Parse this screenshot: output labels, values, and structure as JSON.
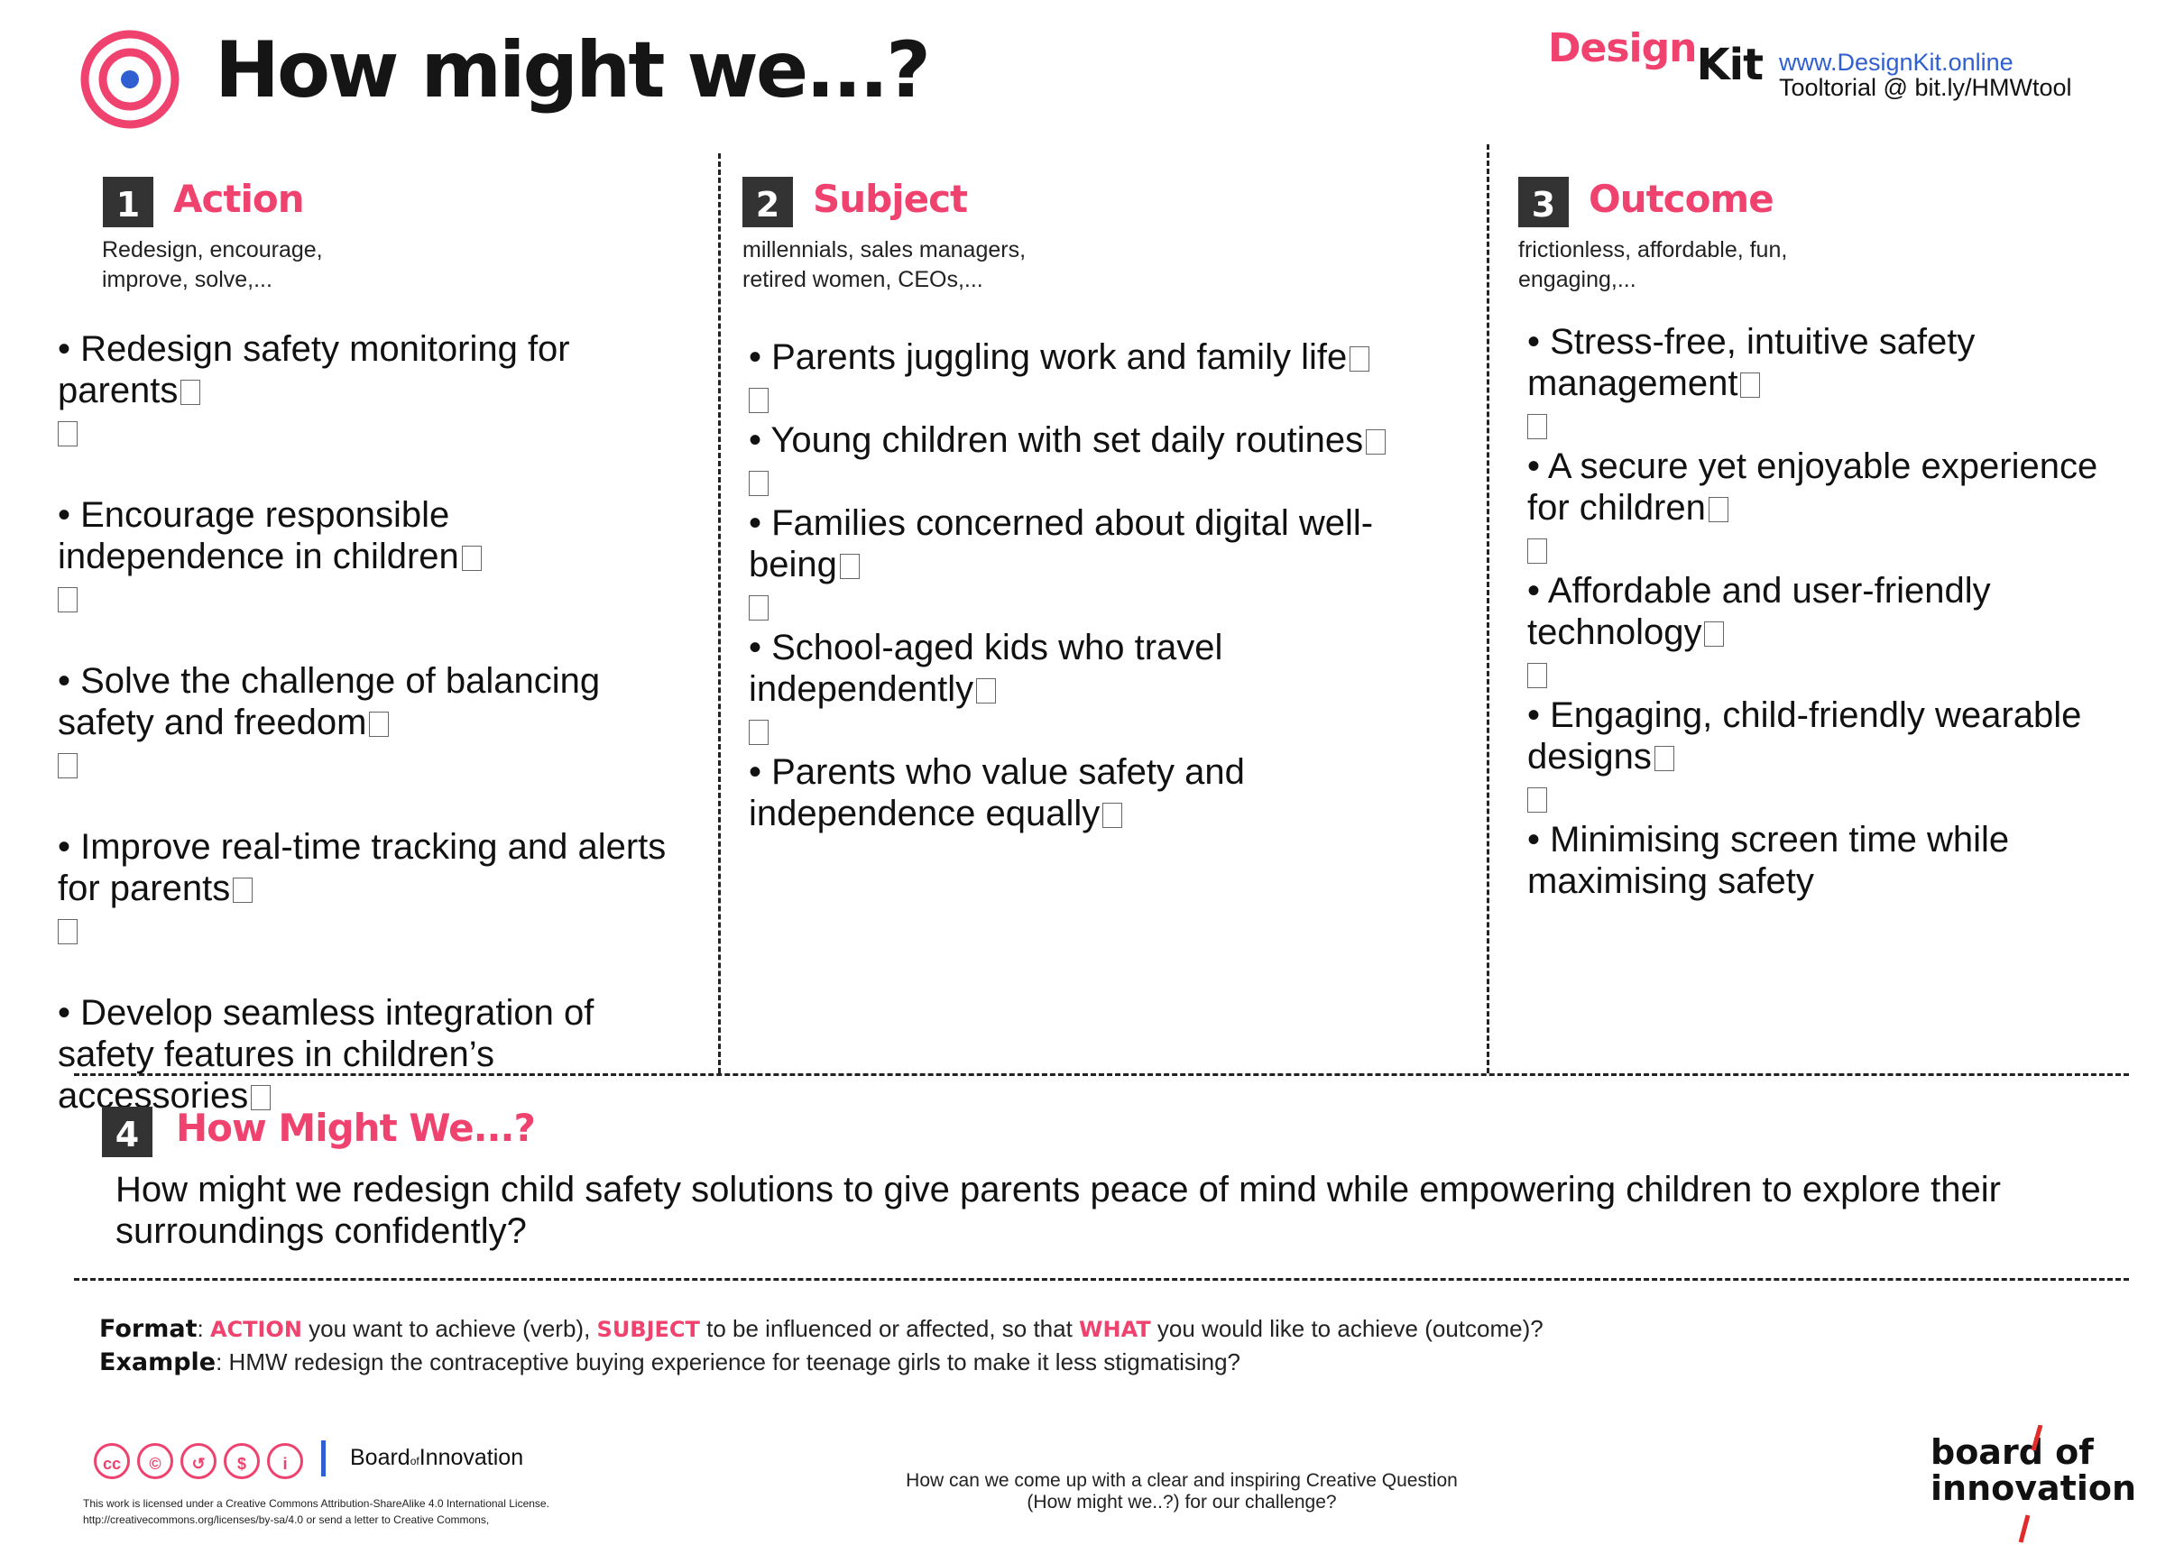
{
  "header": {
    "title": "How might we...?",
    "brand_design": "Design",
    "brand_kit": "Kit",
    "website": "www.DesignKit.online",
    "tooltorial": "Tooltorial @ bit.ly/HMWtool"
  },
  "colors": {
    "accent": "#f0426e",
    "link": "#2f5fd0",
    "dark": "#333333"
  },
  "sections": [
    {
      "number": "1",
      "title": "Action",
      "hint_lines": [
        "Redesign, encourage,",
        "improve, solve,..."
      ],
      "items": [
        "• Redesign safety monitoring for parents",
        "• Encourage responsible independence in children",
        "• Solve the challenge of balancing safety and freedom",
        "• Improve real-time tracking and alerts for parents",
        "• Develop seamless integration of safety features in children’s accessories"
      ]
    },
    {
      "number": "2",
      "title": "Subject",
      "hint_lines": [
        "millennials, sales managers,",
        "retired women, CEOs,..."
      ],
      "items": [
        "• Parents juggling work and family life",
        "• Young children with set daily routines",
        "• Families concerned about digital well-being",
        "• School-aged kids who travel independently",
        "• Parents who value safety and independence equally"
      ]
    },
    {
      "number": "3",
      "title": "Outcome",
      "hint_lines": [
        "frictionless, affordable, fun,",
        "engaging,..."
      ],
      "items": [
        "• Stress-free, intuitive safety management",
        "• A secure yet enjoyable experience for children",
        "• Affordable and user-friendly technology",
        "• Engaging, child-friendly wearable designs",
        "• Minimising screen time while maximising safety"
      ]
    }
  ],
  "hmw": {
    "number": "4",
    "title": "How Might We...?",
    "text": "How might we redesign child safety solutions to give parents peace of mind while empowering children to explore their surroundings confidently?"
  },
  "format": {
    "format_label": "Format",
    "kw_action": "ACTION",
    "t1": " you want to achieve (verb), ",
    "kw_subject": "SUBJECT",
    "t2": " to be influenced or affected, so that ",
    "kw_what": "WHAT",
    "t3": " you would like to achieve (outcome)?",
    "example_label": "Example",
    "example_text": ": HMW redesign the contraceptive buying experience for teenage girls to make it less stigmatising?"
  },
  "footer": {
    "cc_icons": [
      "cc",
      "©",
      "↺",
      "$",
      "i"
    ],
    "boi_small_a": "Board",
    "boi_small_of": "of",
    "boi_small_b": "Innovation",
    "license_line1": "This work is licensed under a Creative Commons Attribution-ShareAlike 4.0 International License.",
    "license_line2": "http://creativecommons.org/licenses/by-sa/4.0 or send a letter to Creative Commons,",
    "question_line1": "How can we come up with a clear and inspiring Creative Question",
    "question_line2": "(How might we..?) for our challenge?",
    "logo_line1": "board of",
    "logo_line2": "innovation"
  }
}
